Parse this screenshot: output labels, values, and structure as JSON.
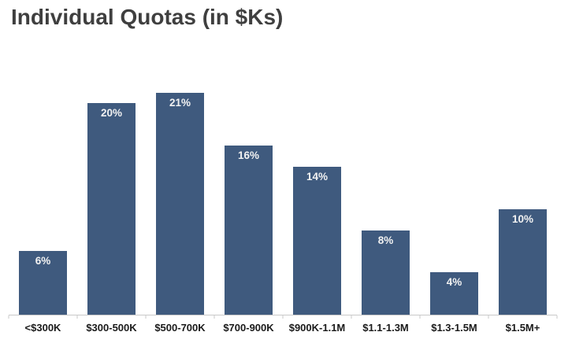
{
  "title": "Individual Quotas (in $Ks)",
  "chart_data": {
    "type": "bar",
    "title": "Individual Quotas (in $Ks)",
    "categories": [
      "<$300K",
      "$300-500K",
      "$500-700K",
      "$700-900K",
      "$900K-1.1M",
      "$1.1-1.3M",
      "$1.3-1.5M",
      "$1.5M+"
    ],
    "values": [
      6,
      20,
      21,
      16,
      14,
      8,
      4,
      10
    ],
    "value_labels": [
      "6%",
      "20%",
      "21%",
      "16%",
      "14%",
      "8%",
      "4%",
      "10%"
    ],
    "xlabel": "",
    "ylabel": "",
    "ylim": [
      0,
      21
    ],
    "grid": false,
    "legend": false,
    "data_labels_position": "inside-top",
    "colors": {
      "bar": "#3f5a7e",
      "bar_label": "#f2f2f2",
      "axis": "#c9c9c9",
      "category_label": "#1a1a1a",
      "title": "#3f3f3f"
    }
  }
}
